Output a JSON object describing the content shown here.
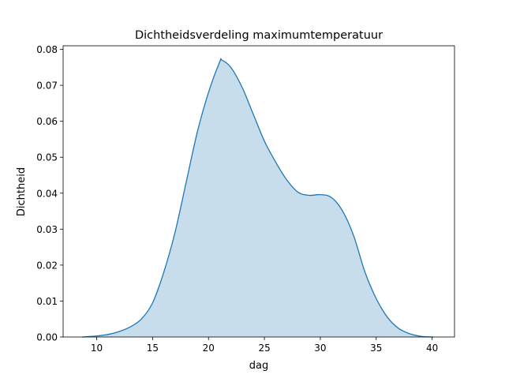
{
  "chart_data": {
    "type": "area",
    "title": "Dichtheidsverdeling maximumtemperatuur",
    "xlabel": "dag",
    "ylabel": "Dichtheid",
    "xlim": [
      7.0,
      42.0
    ],
    "ylim": [
      0.0,
      0.081
    ],
    "xticks": [
      10,
      15,
      20,
      25,
      30,
      35,
      40
    ],
    "xtick_labels": [
      "10",
      "15",
      "20",
      "25",
      "30",
      "35",
      "40"
    ],
    "yticks": [
      0.0,
      0.01,
      0.02,
      0.03,
      0.04,
      0.05,
      0.06,
      0.07,
      0.08
    ],
    "ytick_labels": [
      "0.00",
      "0.01",
      "0.02",
      "0.03",
      "0.04",
      "0.05",
      "0.06",
      "0.07",
      "0.08"
    ],
    "grid": false,
    "line_color": "#1f77b4",
    "fill_color": "#1f77b4",
    "fill_alpha": 0.25,
    "series": [
      {
        "x": [
          8.7,
          10,
          11,
          12,
          13,
          14,
          15,
          16,
          17,
          18,
          19,
          20,
          21,
          21.2,
          22,
          23,
          24,
          25,
          26,
          27,
          28,
          29,
          30,
          31,
          32,
          33,
          34,
          35,
          36,
          37,
          38,
          39,
          40.1
        ],
        "y": [
          0.0,
          0.0003,
          0.0007,
          0.0015,
          0.0028,
          0.005,
          0.0095,
          0.018,
          0.029,
          0.043,
          0.057,
          0.068,
          0.0765,
          0.077,
          0.075,
          0.0695,
          0.062,
          0.0545,
          0.0487,
          0.0437,
          0.0403,
          0.0394,
          0.0396,
          0.0388,
          0.035,
          0.028,
          0.018,
          0.0107,
          0.0055,
          0.0024,
          0.0009,
          0.0002,
          0.0
        ]
      }
    ]
  }
}
